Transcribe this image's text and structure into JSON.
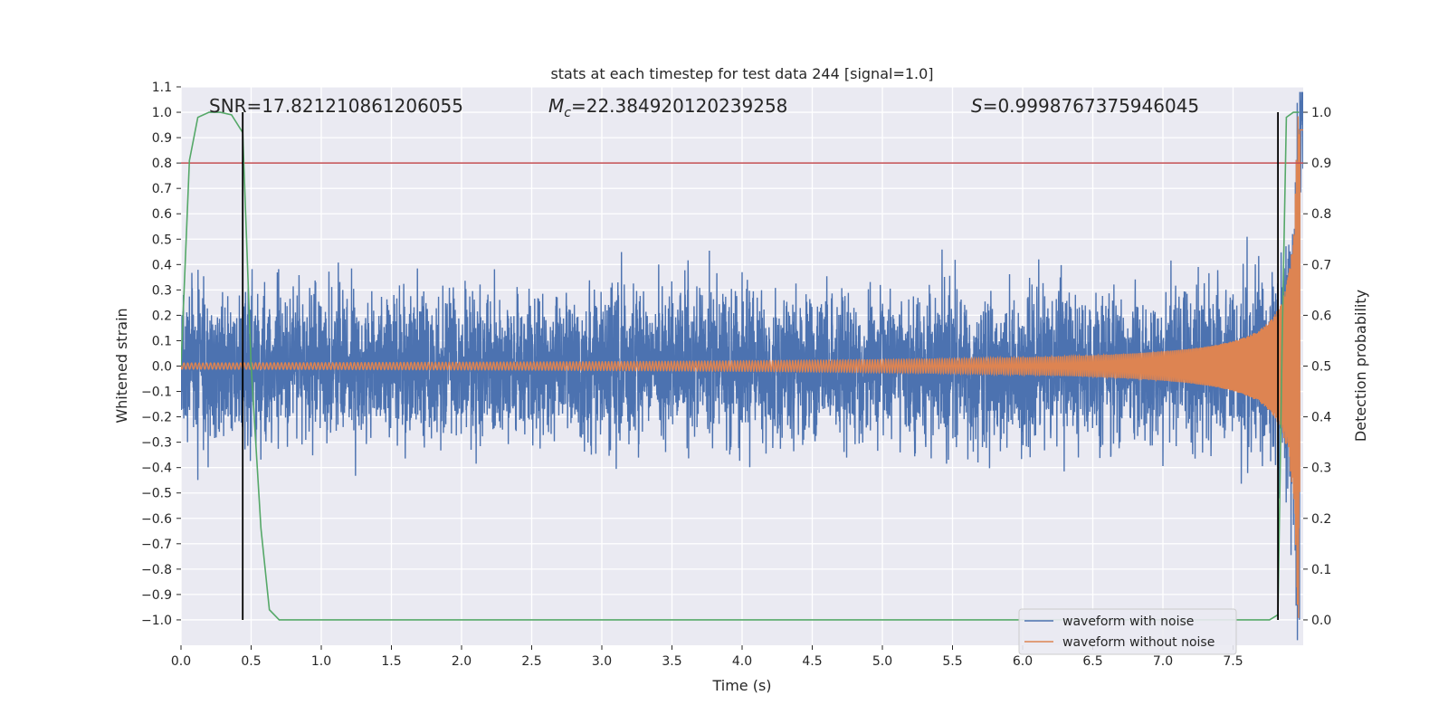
{
  "chart_data": {
    "type": "line",
    "title": "stats at each timestep for test data 244 [signal=1.0]",
    "xlabel": "Time (s)",
    "ylabel_left": "Whitened strain",
    "ylabel_right": "Detection probability",
    "xlim": [
      0.0,
      8.0
    ],
    "ylim_left": [
      -1.1,
      1.1
    ],
    "ylim_right": [
      -0.05,
      1.05
    ],
    "x_ticks": [
      "0.0",
      "0.5",
      "1.0",
      "1.5",
      "2.0",
      "2.5",
      "3.0",
      "3.5",
      "4.0",
      "4.5",
      "5.0",
      "5.5",
      "6.0",
      "6.5",
      "7.0",
      "7.5"
    ],
    "y_left_ticks": [
      "−1.0",
      "−0.9",
      "−0.8",
      "−0.7",
      "−0.6",
      "−0.5",
      "−0.4",
      "−0.3",
      "−0.2",
      "−0.1",
      "0.0",
      "0.1",
      "0.2",
      "0.3",
      "0.4",
      "0.5",
      "0.6",
      "0.7",
      "0.8",
      "0.9",
      "1.0",
      "1.1"
    ],
    "y_right_ticks": [
      "0.0",
      "0.1",
      "0.2",
      "0.3",
      "0.4",
      "0.5",
      "0.6",
      "0.7",
      "0.8",
      "0.9",
      "1.0"
    ],
    "grid": true,
    "legend_position": "bottom-right",
    "annotations": {
      "snr": "SNR=17.821210861206055",
      "mc_symbol": "M",
      "mc_subscript": "c",
      "mc_value": "=22.384920120239258",
      "s_symbol": "S",
      "s_value": "=0.9998767375946045"
    },
    "threshold": {
      "value_right": 0.9,
      "color": "#c44e52"
    },
    "vertical_markers": [
      0.44,
      7.82
    ],
    "series": [
      {
        "name": "waveform with noise",
        "color": "#4c72b0",
        "axis": "left",
        "kind": "noise",
        "std": 0.14,
        "tmax": 8.0
      },
      {
        "name": "waveform without noise",
        "color": "#dd8452",
        "axis": "left",
        "kind": "chirp",
        "tc": 7.98
      },
      {
        "name": "",
        "color": "#55a868",
        "axis": "right",
        "x": [
          0.0,
          0.06,
          0.12,
          0.2,
          0.28,
          0.36,
          0.44,
          0.5,
          0.57,
          0.63,
          0.7,
          1.5,
          3.0,
          5.0,
          7.0,
          7.76,
          7.82,
          7.85,
          7.88,
          7.93,
          7.97
        ],
        "values": [
          0.5,
          0.905,
          0.99,
          1.0,
          1.0,
          0.995,
          0.96,
          0.5,
          0.18,
          0.02,
          0.0,
          0.0,
          0.0,
          0.0,
          0.0,
          0.0,
          0.01,
          0.55,
          0.99,
          1.0,
          1.0
        ]
      }
    ]
  }
}
